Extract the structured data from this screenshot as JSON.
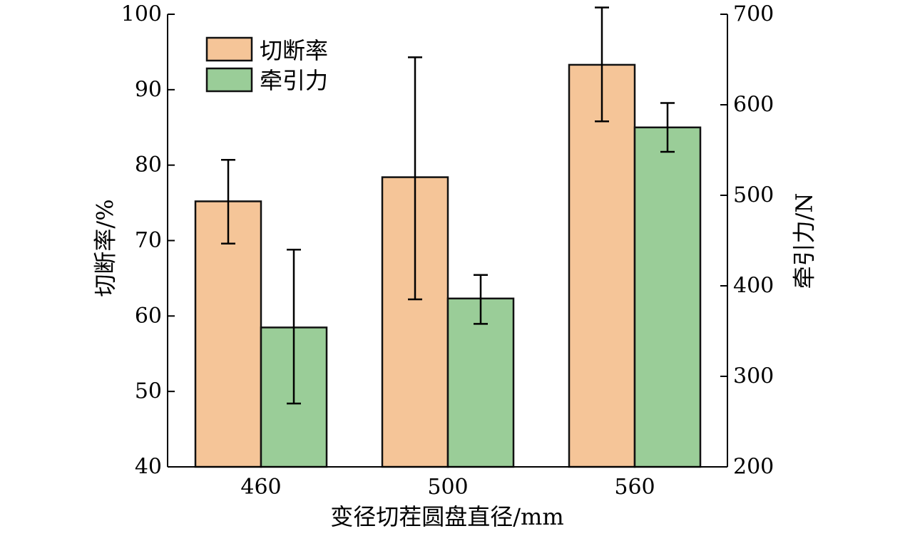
{
  "chart_data": {
    "type": "bar",
    "categories": [
      "460",
      "500",
      "560"
    ],
    "xlabel": "变径切茬圆盘直径/mm",
    "ylabel_left": "切断率/%",
    "ylabel_right": "牵引力/N",
    "ylim_left": [
      40,
      100
    ],
    "yticks_left": [
      40,
      50,
      60,
      70,
      80,
      90,
      100
    ],
    "ylim_right": [
      200,
      700
    ],
    "yticks_right": [
      200,
      300,
      400,
      500,
      600,
      700
    ],
    "legend_position": "top-left",
    "grid": false,
    "series": [
      {
        "name": "切断率",
        "axis": "left",
        "color": "#F5C598",
        "values": [
          75.2,
          78.4,
          93.3
        ],
        "error_low": [
          69.6,
          62.2,
          85.8
        ],
        "error_high": [
          80.7,
          94.3,
          100.9
        ]
      },
      {
        "name": "牵引力",
        "axis": "right",
        "color": "#9ACD98",
        "values": [
          354,
          386,
          575
        ],
        "error_low": [
          270,
          358,
          548
        ],
        "error_high": [
          440,
          412,
          602
        ]
      }
    ]
  }
}
